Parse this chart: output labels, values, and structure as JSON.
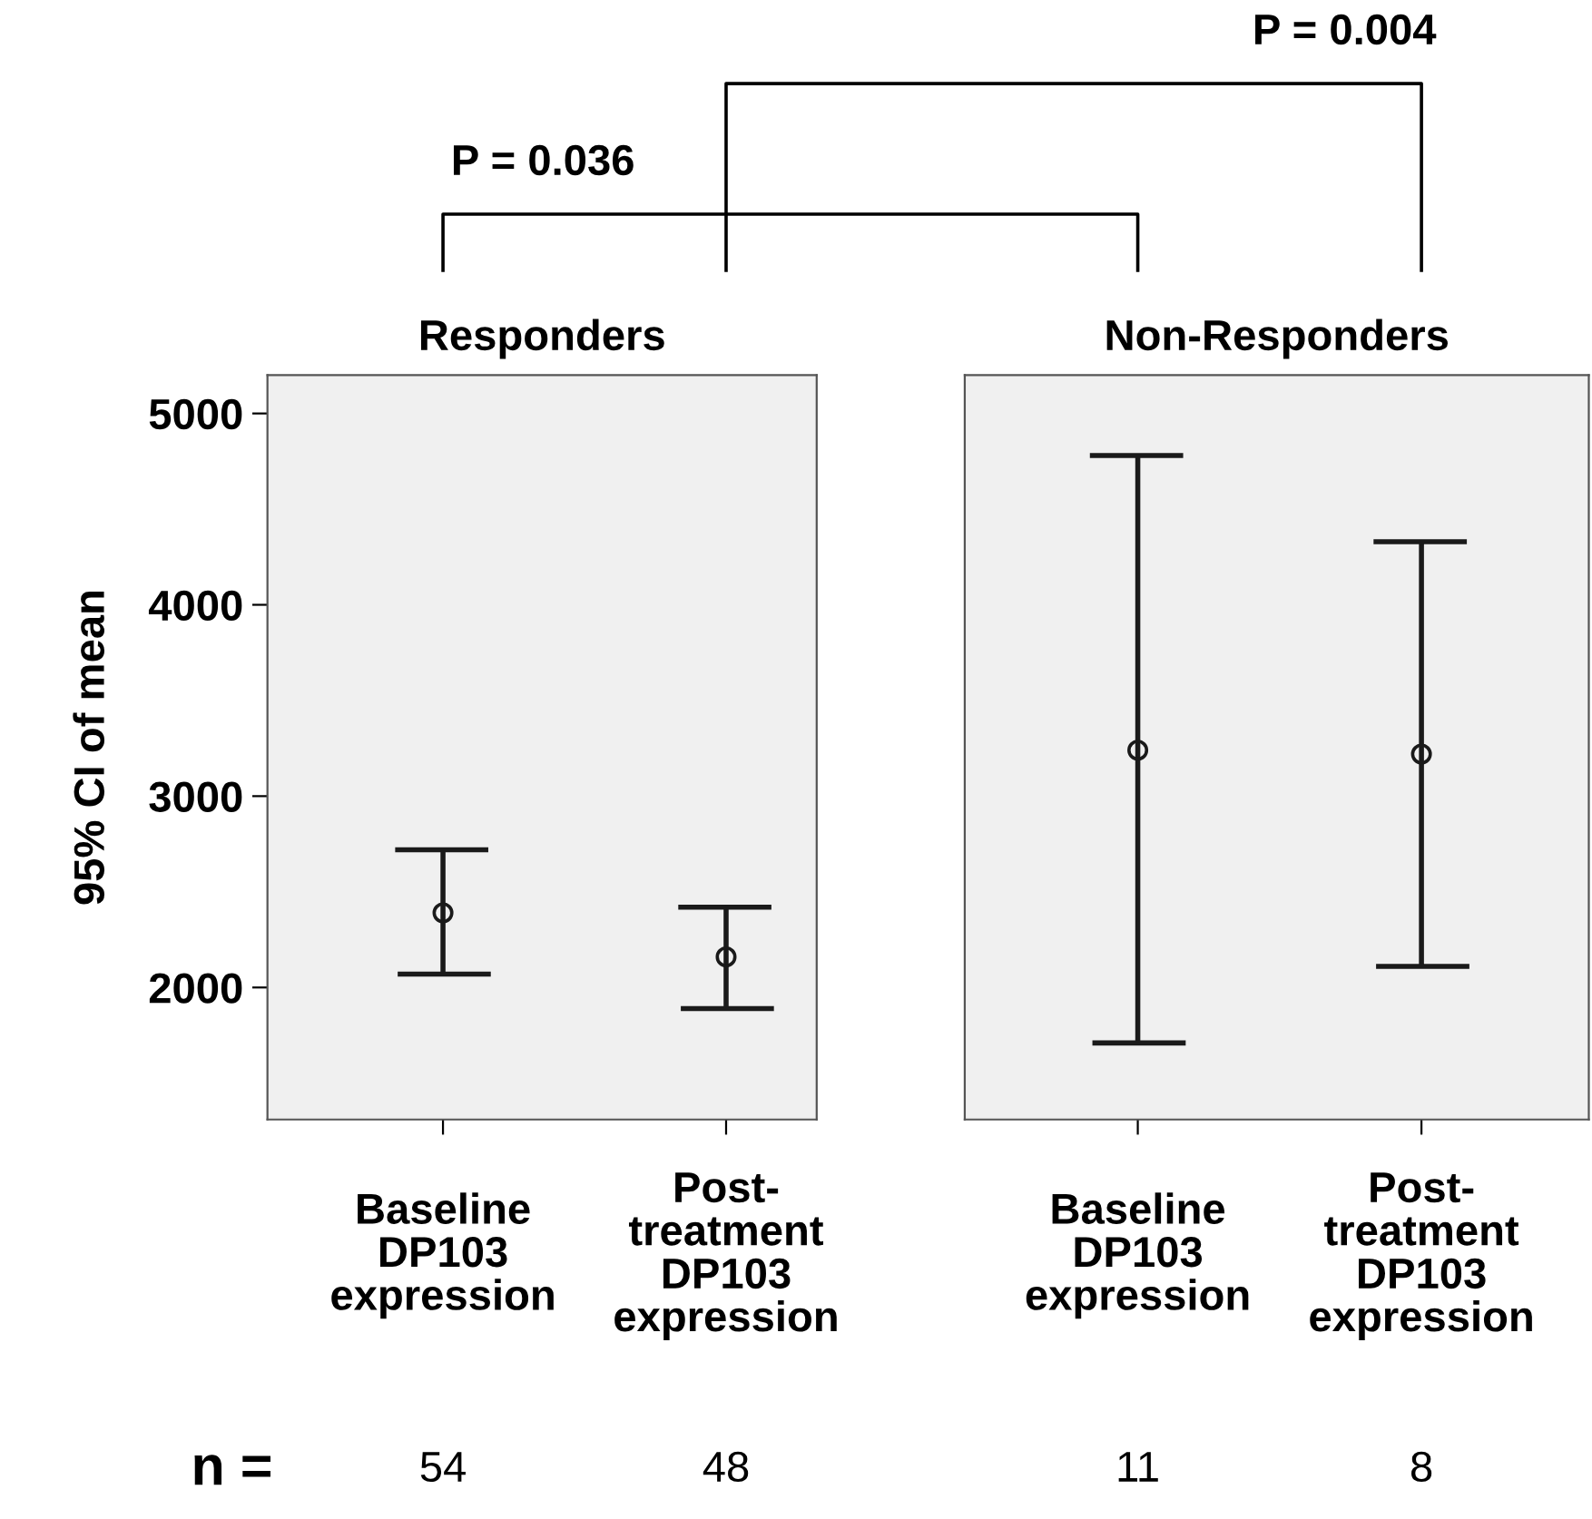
{
  "chart_data": [
    {
      "type": "scatter",
      "title": "Responders",
      "ylabel": "95% CI of mean",
      "categories": [
        "Baseline\nDP103\nexpression",
        "Post-\ntreatment\nDP103\nexpression"
      ],
      "values": [
        2390,
        2160
      ],
      "errors": [
        [
          2070,
          2720
        ],
        [
          1890,
          2420
        ]
      ],
      "color": "#1a1a1a",
      "marker": "circle",
      "ylim": [
        1310,
        5200
      ],
      "yticks": [
        2000,
        3000,
        4000,
        5000
      ],
      "annotations": [
        "P = 0.036",
        "P = 0.004",
        "n =",
        "54",
        "48"
      ]
    },
    {
      "type": "scatter",
      "title": "Non-Responders",
      "categories": [
        "Baseline\nDP103\nexpression",
        "Post-\ntreatment\nDP103\nexpression"
      ],
      "values": [
        3240,
        3220
      ],
      "errors": [
        [
          1710,
          4780
        ],
        [
          2110,
          4330
        ]
      ],
      "color": "#1a1a1a",
      "marker": "circle",
      "ylim": [
        1310,
        5200
      ],
      "tick_labels": "x",
      "annotations": [
        "11",
        "8"
      ]
    }
  ]
}
